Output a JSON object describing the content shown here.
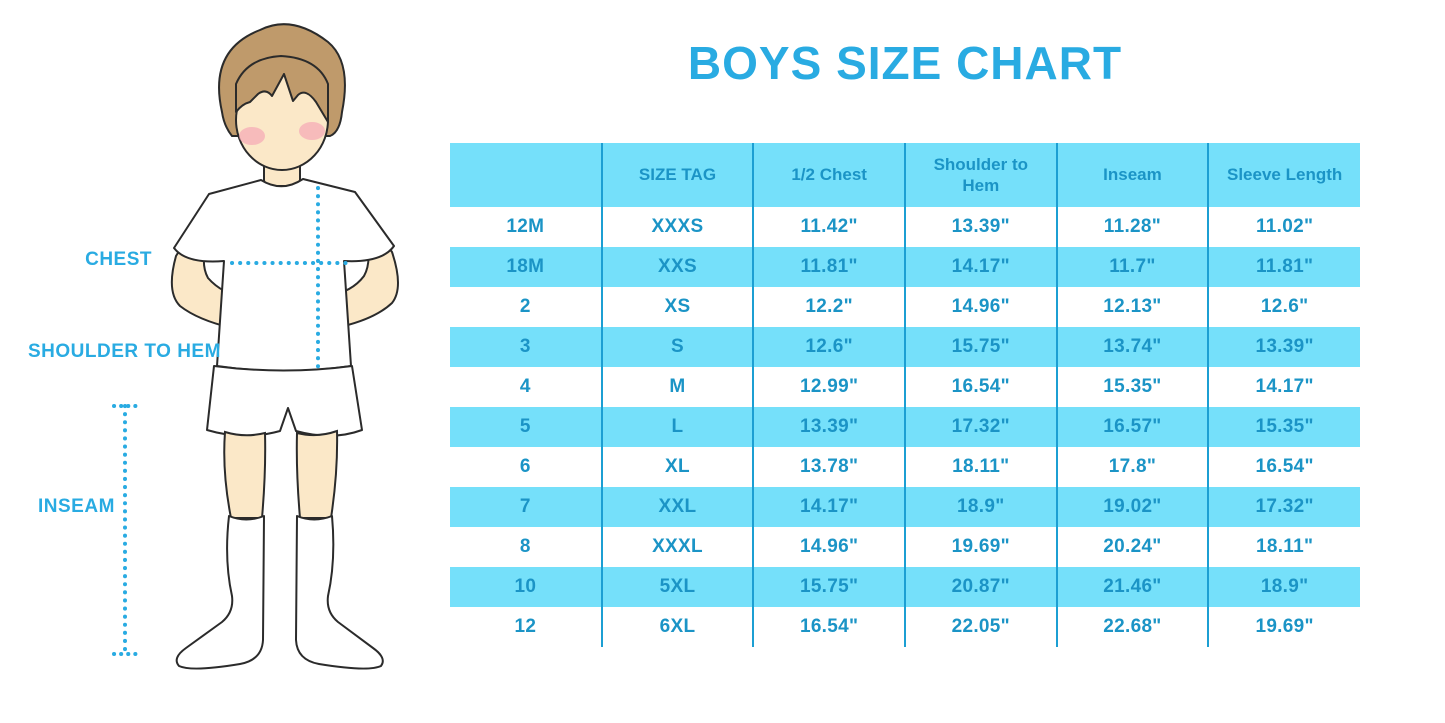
{
  "page": {
    "title": "BOYS SIZE CHART"
  },
  "figure": {
    "description": "cartoon-boy-with-measurement-lines",
    "labels": {
      "chest": "CHEST",
      "shoulder_to_hem": "SHOULDER TO HEM",
      "inseam": "INSEAM"
    },
    "colors": {
      "annotation_blue": "#29ABE2",
      "skin": "#FBE8C8",
      "hair": "#BF9A6B",
      "blush": "#F5A3B3",
      "outline": "#2B2B2B"
    }
  },
  "chart_data": {
    "type": "table",
    "title": "BOYS SIZE CHART",
    "columns": [
      "",
      "SIZE TAG",
      "1/2 Chest",
      "Shoulder to Hem",
      "Inseam",
      "Sleeve Length"
    ],
    "rows": [
      [
        "12M",
        "XXXS",
        "11.42\"",
        "13.39\"",
        "11.28\"",
        "11.02\""
      ],
      [
        "18M",
        "XXS",
        "11.81\"",
        "14.17\"",
        "11.7\"",
        "11.81\""
      ],
      [
        "2",
        "XS",
        "12.2\"",
        "14.96\"",
        "12.13\"",
        "12.6\""
      ],
      [
        "3",
        "S",
        "12.6\"",
        "15.75\"",
        "13.74\"",
        "13.39\""
      ],
      [
        "4",
        "M",
        "12.99\"",
        "16.54\"",
        "15.35\"",
        "14.17\""
      ],
      [
        "5",
        "L",
        "13.39\"",
        "17.32\"",
        "16.57\"",
        "15.35\""
      ],
      [
        "6",
        "XL",
        "13.78\"",
        "18.11\"",
        "17.8\"",
        "16.54\""
      ],
      [
        "7",
        "XXL",
        "14.17\"",
        "18.9\"",
        "19.02\"",
        "17.32\""
      ],
      [
        "8",
        "XXXL",
        "14.96\"",
        "19.69\"",
        "20.24\"",
        "18.11\""
      ],
      [
        "10",
        "5XL",
        "15.75\"",
        "20.87\"",
        "21.46\"",
        "18.9\""
      ],
      [
        "12",
        "6XL",
        "16.54\"",
        "22.05\"",
        "22.68\"",
        "19.69\""
      ]
    ],
    "layout": {
      "striped": true,
      "stripe_pattern": "header and every second body row filled light blue",
      "grid": "vertical separators only"
    },
    "colors": {
      "header_bg": "#75E0FA",
      "stripe_bg": "#75E0FA",
      "text": "#1B94C6",
      "separator": "#1C9FD3",
      "title": "#29ABE2"
    }
  }
}
